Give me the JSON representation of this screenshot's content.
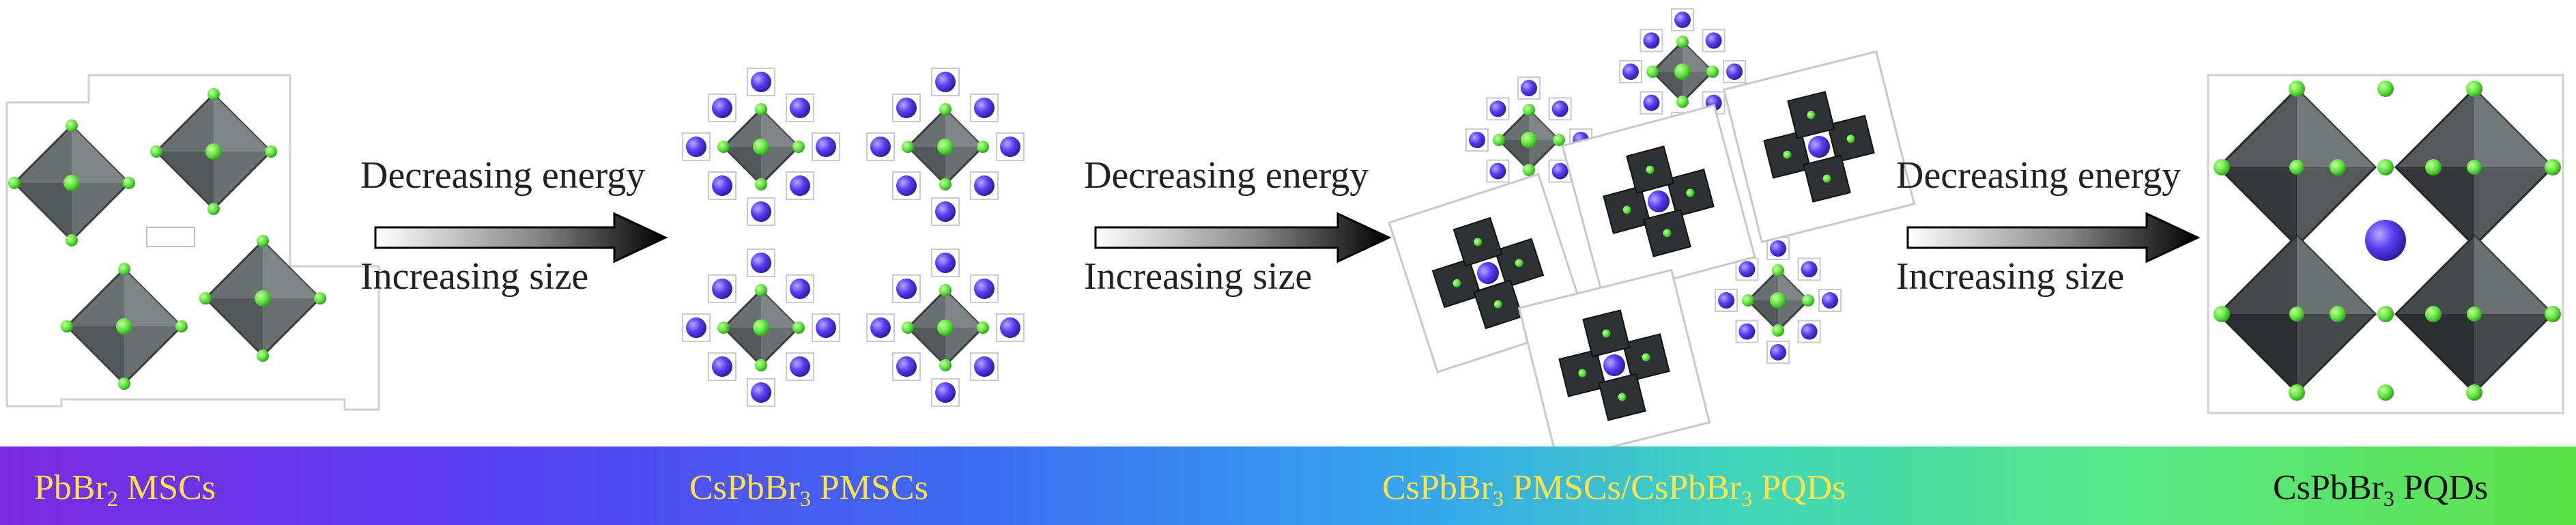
{
  "arrows": [
    {
      "top": "Decreasing energy",
      "bottom": "Increasing size"
    },
    {
      "top": "Decreasing energy",
      "bottom": "Increasing size"
    },
    {
      "top": "Decreasing energy",
      "bottom": "Increasing size"
    }
  ],
  "stages": [
    {
      "pre": "PbBr",
      "sub": "2",
      "post": " MSCs",
      "color": "#ffe14a"
    },
    {
      "pre": "CsPbBr",
      "sub": "3",
      "post": " PMSCs",
      "color": "#ffe14a"
    },
    {
      "pre": "CsPbBr",
      "sub": "3",
      "post": " PMSCs/CsPbBr",
      "sub2": "3",
      "post2": " PQDs",
      "color": "#ffe14a"
    },
    {
      "pre": "CsPbBr",
      "sub": "3",
      "post": " PQDs",
      "color": "#111111"
    }
  ],
  "colors": {
    "octahedron": "#6a6f72",
    "octahedron_dark": "#2f3234",
    "br_atom": "#5ae03c",
    "cs_atom": "#5a3df0",
    "outline": "#c8c8c8"
  }
}
